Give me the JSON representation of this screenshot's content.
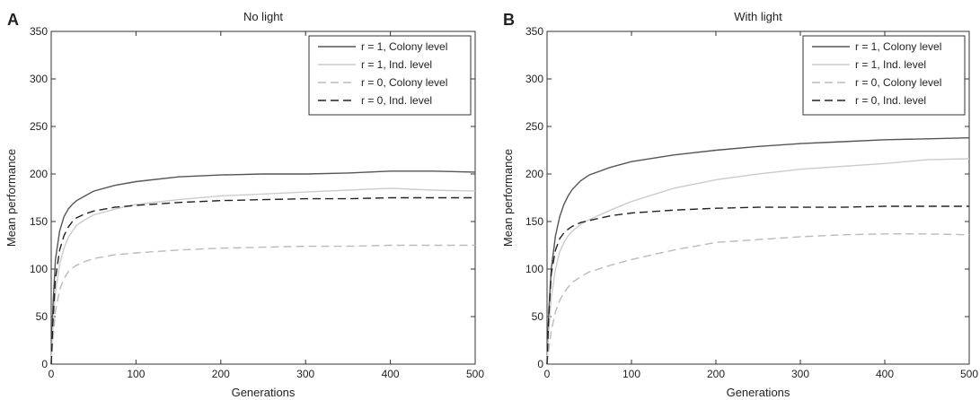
{
  "chart_data": [
    {
      "type": "line",
      "panel": "A",
      "title": "No light",
      "xlabel": "Generations",
      "ylabel": "Mean performance",
      "xlim": [
        0,
        500
      ],
      "ylim": [
        0,
        350
      ],
      "xticks": [
        "0",
        "100",
        "200",
        "300",
        "400",
        "500"
      ],
      "yticks": [
        "0",
        "50",
        "100",
        "150",
        "200",
        "250",
        "300",
        "350"
      ],
      "grid": false,
      "legend_position": "top-right",
      "series": [
        {
          "name": "r = 1, Colony level",
          "color": "#555555",
          "style": "solid",
          "x": [
            0,
            2,
            5,
            10,
            15,
            20,
            25,
            30,
            40,
            50,
            75,
            100,
            150,
            200,
            250,
            300,
            350,
            400,
            450,
            500
          ],
          "y": [
            0,
            60,
            110,
            140,
            155,
            163,
            168,
            172,
            177,
            182,
            188,
            192,
            197,
            199,
            200,
            200,
            201,
            203,
            203,
            202
          ]
        },
        {
          "name": "r = 1, Ind. level",
          "color": "#cccccc",
          "style": "solid",
          "x": [
            0,
            2,
            5,
            10,
            15,
            20,
            25,
            30,
            40,
            50,
            75,
            100,
            150,
            200,
            250,
            300,
            350,
            400,
            450,
            500
          ],
          "y": [
            0,
            40,
            75,
            105,
            122,
            133,
            140,
            146,
            152,
            157,
            163,
            168,
            173,
            177,
            179,
            181,
            183,
            185,
            183,
            182
          ]
        },
        {
          "name": "r = 0, Colony level",
          "color": "#bbbbbb",
          "style": "dashed",
          "x": [
            0,
            2,
            5,
            10,
            15,
            20,
            25,
            30,
            40,
            50,
            75,
            100,
            150,
            200,
            250,
            300,
            350,
            400,
            450,
            500
          ],
          "y": [
            0,
            25,
            55,
            78,
            90,
            97,
            101,
            104,
            108,
            111,
            115,
            117,
            120,
            122,
            123,
            124,
            124,
            125,
            125,
            125
          ]
        },
        {
          "name": "r = 0, Ind. level",
          "color": "#222222",
          "style": "dashed",
          "x": [
            0,
            2,
            5,
            10,
            15,
            20,
            25,
            30,
            40,
            50,
            75,
            100,
            150,
            200,
            250,
            300,
            350,
            400,
            450,
            500
          ],
          "y": [
            0,
            45,
            90,
            120,
            135,
            144,
            150,
            154,
            158,
            161,
            165,
            167,
            170,
            172,
            173,
            174,
            174,
            175,
            175,
            175
          ]
        }
      ]
    },
    {
      "type": "line",
      "panel": "B",
      "title": "With light",
      "xlabel": "Generations",
      "ylabel": "Mean performance",
      "xlim": [
        0,
        500
      ],
      "ylim": [
        0,
        350
      ],
      "xticks": [
        "0",
        "100",
        "200",
        "300",
        "400",
        "500"
      ],
      "yticks": [
        "0",
        "50",
        "100",
        "150",
        "200",
        "250",
        "300",
        "350"
      ],
      "grid": false,
      "legend_position": "top-right",
      "series": [
        {
          "name": "r = 1, Colony level",
          "color": "#555555",
          "style": "solid",
          "x": [
            0,
            2,
            5,
            10,
            15,
            20,
            25,
            30,
            40,
            50,
            75,
            100,
            150,
            200,
            250,
            300,
            350,
            400,
            450,
            500
          ],
          "y": [
            0,
            55,
            100,
            135,
            155,
            168,
            177,
            184,
            193,
            199,
            207,
            213,
            220,
            225,
            229,
            232,
            234,
            236,
            237,
            238
          ]
        },
        {
          "name": "r = 1, Ind. level",
          "color": "#cccccc",
          "style": "solid",
          "x": [
            0,
            2,
            5,
            10,
            15,
            20,
            25,
            30,
            40,
            50,
            75,
            100,
            150,
            200,
            250,
            300,
            350,
            400,
            450,
            500
          ],
          "y": [
            0,
            35,
            70,
            100,
            118,
            128,
            135,
            140,
            147,
            152,
            162,
            171,
            185,
            194,
            200,
            205,
            208,
            211,
            215,
            216
          ]
        },
        {
          "name": "r = 0, Colony level",
          "color": "#bbbbbb",
          "style": "dashed",
          "x": [
            0,
            2,
            5,
            10,
            15,
            20,
            25,
            30,
            40,
            50,
            75,
            100,
            150,
            200,
            250,
            300,
            350,
            400,
            450,
            500
          ],
          "y": [
            0,
            15,
            35,
            55,
            67,
            75,
            81,
            86,
            92,
            97,
            104,
            110,
            120,
            128,
            131,
            134,
            136,
            137,
            137,
            136
          ]
        },
        {
          "name": "r = 0, Ind. level",
          "color": "#222222",
          "style": "dashed",
          "x": [
            0,
            2,
            5,
            10,
            15,
            20,
            25,
            30,
            40,
            50,
            75,
            100,
            150,
            200,
            250,
            300,
            350,
            400,
            450,
            500
          ],
          "y": [
            0,
            50,
            95,
            120,
            132,
            138,
            142,
            145,
            149,
            151,
            156,
            159,
            162,
            164,
            165,
            165,
            165,
            166,
            166,
            166
          ]
        }
      ]
    }
  ]
}
